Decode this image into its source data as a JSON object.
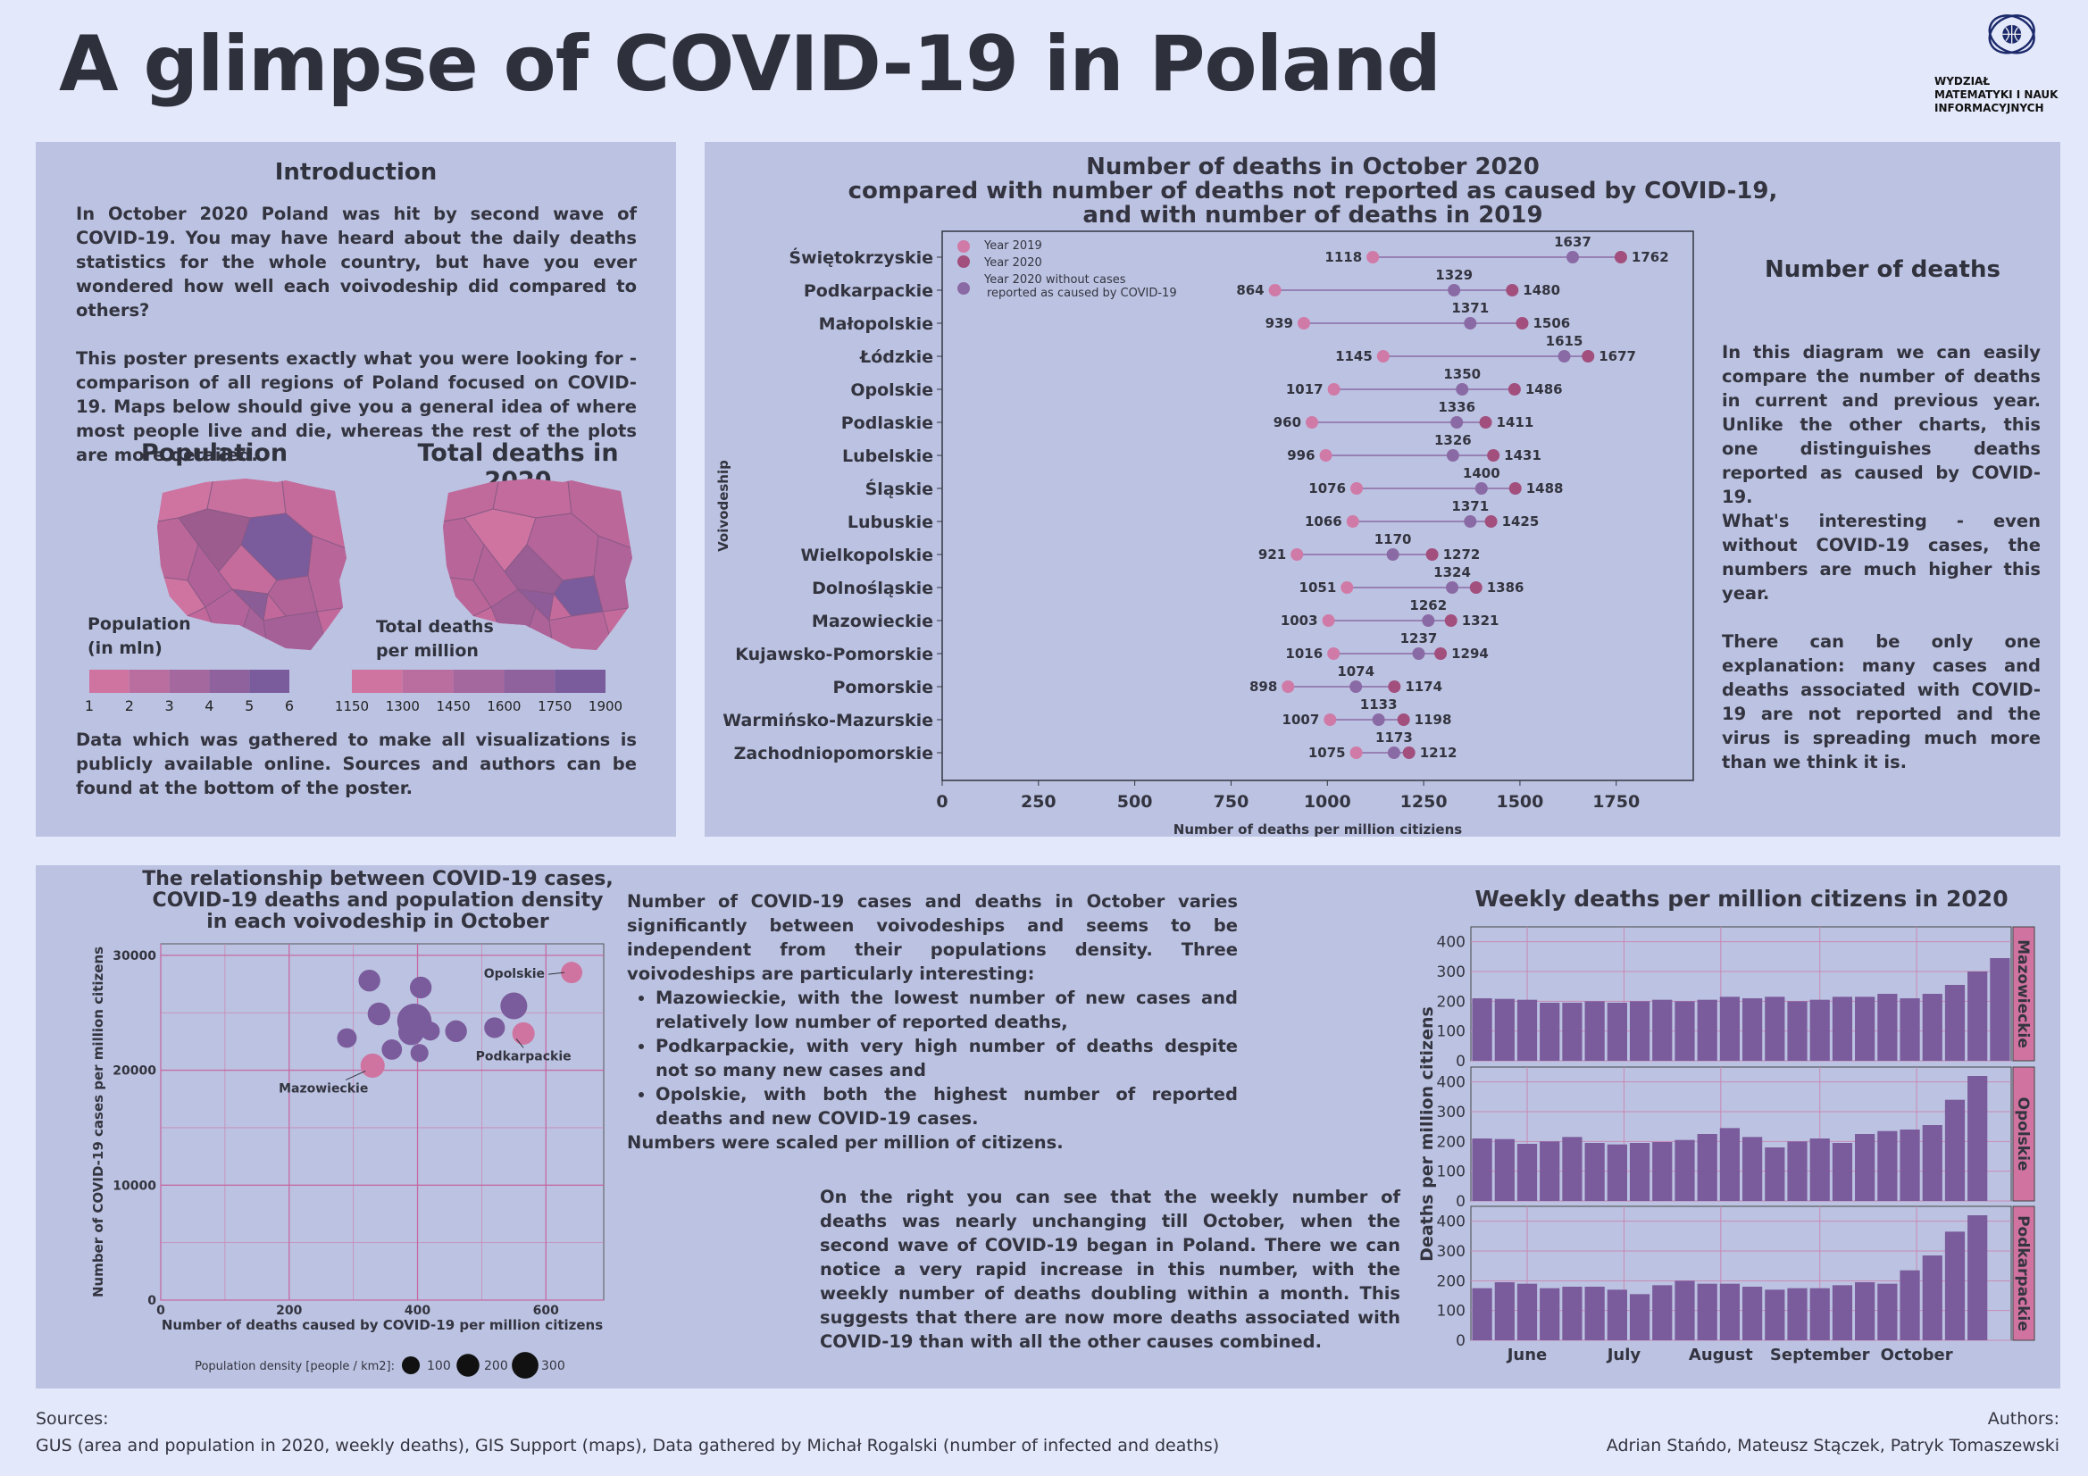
{
  "title": "A glimpse of COVID-19 in Poland",
  "logo": {
    "name": "Faculty logo",
    "text_lines": [
      "WYDZIAŁ",
      "MATEMATYKI I NAUK",
      "INFORMACYJNYCH"
    ]
  },
  "intro": {
    "heading": "Introduction",
    "paragraphs": [
      "In October 2020 Poland was hit by second wave of COVID-19. You may have heard about the daily deaths statistics for  the whole country, but have you ever wondered how well  each voivodeship did compared to others?",
      "This poster presents exactly what you were looking for - comparison of all regions of Poland focused on COVID-19. Maps below should give you a general idea of where most people live and die, whereas the rest of the plots are more detailed."
    ],
    "footer": "Data which was gathered to make all visualizations is publicly available online. Sources and authors can be found at the bottom of the poster."
  },
  "maps": {
    "population_title": "Population",
    "deaths_title": "Total deaths in 2020",
    "population_legend": {
      "title_lines": [
        "Population",
        "(in mln)"
      ],
      "ticks": [
        "1",
        "2",
        "3",
        "4",
        "5",
        "6"
      ]
    },
    "deaths_legend": {
      "title_lines": [
        "Total deaths",
        "per million"
      ],
      "ticks": [
        "1150",
        "1300",
        "1450",
        "1600",
        "1750",
        "1900"
      ]
    },
    "color_low": "#cf74a1",
    "color_high": "#7a5b9b"
  },
  "dumbbell": {
    "type": "dumbbell",
    "title_lines": [
      "Number of deaths in October 2020",
      "compared with number of deaths not reported as caused by COVID-19,",
      "and with number of deaths in 2019"
    ],
    "xlabel": "Number of deaths per million citiziens",
    "ylabel": "Voivodeship",
    "xlim": [
      0,
      1950
    ],
    "xticks": [
      0,
      250,
      500,
      750,
      1000,
      1250,
      1500,
      1750
    ],
    "legend": [
      {
        "label": "Year 2019",
        "color": "#d07aa7"
      },
      {
        "label": "Year 2020",
        "color": "#a24f7d"
      },
      {
        "label": "Year 2020 without cases reported as caused by COVID-19",
        "label_lines": [
          "Year 2020 without cases",
          "reported as caused by COVID-19"
        ],
        "color": "#8a6aa5"
      }
    ],
    "regions": [
      "Świętokrzyskie",
      "Podkarpackie",
      "Małopolskie",
      "Łódzkie",
      "Opolskie",
      "Podlaskie",
      "Lubelskie",
      "Śląskie",
      "Lubuskie",
      "Wielkopolskie",
      "Dolnośląskie",
      "Mazowieckie",
      "Kujawsko-Pomorskie",
      "Pomorskie",
      "Warmińsko-Mazurskie",
      "Zachodniopomorskie"
    ],
    "y2019": [
      1118,
      864,
      939,
      1145,
      1017,
      960,
      996,
      1076,
      1066,
      921,
      1051,
      1003,
      1016,
      898,
      1007,
      1075
    ],
    "y2020_no_covid": [
      1637,
      1329,
      1371,
      1615,
      1350,
      1336,
      1326,
      1400,
      1371,
      1170,
      1324,
      1262,
      1237,
      1074,
      1133,
      1173
    ],
    "y2020": [
      1762,
      1480,
      1506,
      1677,
      1486,
      1411,
      1431,
      1488,
      1425,
      1272,
      1386,
      1321,
      1294,
      1174,
      1198,
      1212
    ]
  },
  "deaths_text": {
    "heading": "Number of deaths",
    "paragraphs": [
      "In this diagram we can easily compare the number of deaths in current and previous year. Unlike the other charts, this one distinguishes deaths reported as caused by COVID-19.",
      "What's interesting - even without COVID-19 cases, the numbers are much higher this year.",
      "There can be only one explanation: many cases  and deaths associated with COVID-19 are not reported and the virus is spreading much more than we think it is."
    ]
  },
  "scatter": {
    "type": "scatter",
    "title_lines": [
      "The relationship between COVID-19 cases,",
      "COVID-19 deaths and population density",
      "in each voivodeship in October"
    ],
    "xlabel": "Number of deaths caused by COVID-19 per million citizens",
    "ylabel": "Number of COVID-19 cases per million citizens",
    "xlim": [
      0,
      690
    ],
    "ylim": [
      0,
      31000
    ],
    "xticks": [
      0,
      200,
      400,
      600
    ],
    "yticks": [
      0,
      10000,
      20000,
      30000
    ],
    "size_legend": {
      "title": "Population density [people / km2]:",
      "values": [
        100,
        200,
        300
      ],
      "labels": [
        "100",
        "200",
        "300"
      ]
    },
    "points": [
      {
        "x": 640,
        "y": 28500,
        "density": 105,
        "highlight": true
      },
      {
        "x": 330,
        "y": 20400,
        "density": 150,
        "highlight": true
      },
      {
        "x": 565,
        "y": 23200,
        "density": 120,
        "highlight": true
      },
      {
        "x": 325,
        "y": 27800,
        "density": 110
      },
      {
        "x": 405,
        "y": 27200,
        "density": 110
      },
      {
        "x": 290,
        "y": 22800,
        "density": 80
      },
      {
        "x": 340,
        "y": 24900,
        "density": 125
      },
      {
        "x": 395,
        "y": 24300,
        "density": 380
      },
      {
        "x": 400,
        "y": 24000,
        "density": 245
      },
      {
        "x": 390,
        "y": 23300,
        "density": 175
      },
      {
        "x": 420,
        "y": 23400,
        "density": 70
      },
      {
        "x": 360,
        "y": 21800,
        "density": 90
      },
      {
        "x": 403,
        "y": 21500,
        "density": 60
      },
      {
        "x": 460,
        "y": 23400,
        "density": 110
      },
      {
        "x": 520,
        "y": 23700,
        "density": 95
      },
      {
        "x": 550,
        "y": 25600,
        "density": 200
      }
    ],
    "annotations": [
      {
        "label": "Opolskie",
        "x": 640,
        "y": 28500
      },
      {
        "label": "Mazowieckie",
        "x": 330,
        "y": 20400
      },
      {
        "label": "Podkarpackie",
        "x": 565,
        "y": 23200
      }
    ]
  },
  "scatter_text": {
    "intro": "Number of COVID-19 cases and deaths in October varies significantly between voivodeships and seems to be independent from their populations density. Three voivodeships are particularly interesting:",
    "bullets": [
      "Mazowieckie, with the lowest number of new cases and relatively low number of reported deaths,",
      "Podkarpackie, with very high number of deaths despite not so many new cases and",
      "Opolskie, with both the highest number of reported deaths and new COVID-19 cases."
    ],
    "outro": "Numbers were scaled per million of citizens."
  },
  "weekly_text": "On the right you can see that the weekly number of deaths was nearly unchanging till October, when the second wave of COVID-19 began in Poland. There we can notice a very rapid increase in this number, with the weekly number of deaths doubling within a month. This suggests that there are now more deaths associated with COVID-19 than with all the other causes combined.",
  "weekly": {
    "type": "bar",
    "title": "Weekly deaths per million citizens in 2020",
    "ylabel": "Deaths per million citizens",
    "ylim": [
      0,
      450
    ],
    "yticks": [
      0,
      100,
      200,
      300,
      400
    ],
    "month_labels": [
      "June",
      "July",
      "August",
      "September",
      "October"
    ],
    "month_positions": [
      2.5,
      6.8,
      11.1,
      15.5,
      19.8
    ],
    "series": [
      {
        "name": "Mazowieckie",
        "values": [
          210,
          208,
          205,
          195,
          195,
          200,
          195,
          200,
          205,
          200,
          205,
          215,
          210,
          215,
          200,
          205,
          215,
          215,
          225,
          210,
          225,
          255,
          300,
          345
        ]
      },
      {
        "name": "Opolskie",
        "values": [
          210,
          208,
          192,
          200,
          215,
          195,
          190,
          195,
          198,
          205,
          225,
          245,
          215,
          180,
          200,
          210,
          195,
          225,
          235,
          240,
          255,
          340,
          420,
          0
        ]
      },
      {
        "name": "Podkarpackie",
        "values": [
          175,
          195,
          190,
          175,
          180,
          180,
          170,
          155,
          185,
          200,
          190,
          190,
          180,
          170,
          175,
          175,
          185,
          195,
          190,
          235,
          285,
          365,
          420,
          0
        ]
      }
    ],
    "bar_color": "#7a5b9b",
    "strip_color": "#d073a0"
  },
  "sources": {
    "label": "Sources:",
    "text": "GUS (area and population in 2020, weekly deaths),  GIS Support (maps), Data gathered by Michał Rogalski (number of infected and deaths)"
  },
  "authors": {
    "label": "Authors:",
    "text": "Adrian Stańdo, Mateusz Stączek, Patryk Tomaszewski"
  }
}
